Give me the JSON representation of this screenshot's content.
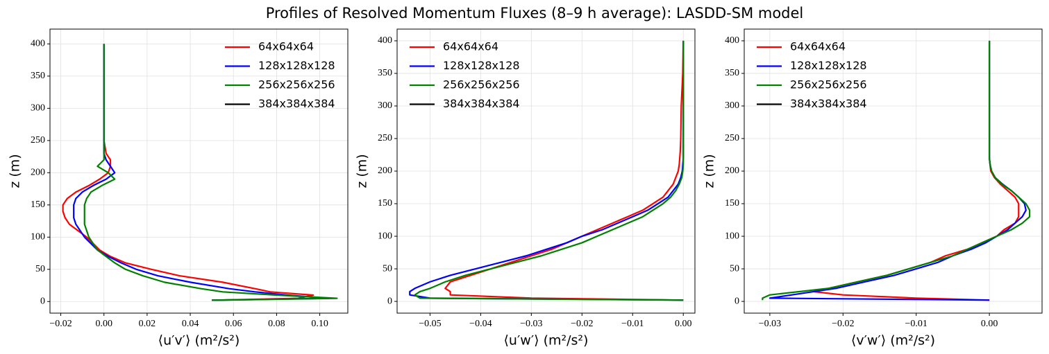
{
  "title": "Profiles of Resolved Momentum Fluxes (8–9 h average): LASDD-SM model",
  "chart_data": [
    {
      "type": "line",
      "xlabel": "⟨u′v′⟩ (m²/s²)",
      "ylabel": "z (m)",
      "grid": true,
      "legend": "upper right",
      "xlim": [
        -0.025,
        0.113
      ],
      "xticks": [
        {
          "value": -0.02,
          "label": "−0.02"
        },
        {
          "value": 0,
          "label": "0.00"
        },
        0.02,
        0.04,
        0.06,
        0.08,
        {
          "value": 0.1,
          "label": "0.10"
        }
      ],
      "ylim": [
        -18,
        423
      ],
      "yticks": [
        0,
        50,
        100,
        150,
        200,
        250,
        300,
        350,
        400
      ],
      "y": [
        2,
        5,
        10,
        15,
        20,
        30,
        40,
        50,
        60,
        70,
        80,
        90,
        100,
        110,
        120,
        130,
        140,
        150,
        160,
        170,
        180,
        190,
        200,
        210,
        220,
        230,
        250,
        300,
        350,
        400
      ],
      "series": [
        {
          "name": "64x64x64",
          "color": "#ff0000",
          "values": [
            0.05,
            0.09,
            0.097,
            0.077,
            0.07,
            0.055,
            0.035,
            0.022,
            0.01,
            0.003,
            -0.002,
            -0.005,
            -0.008,
            -0.012,
            -0.016,
            -0.018,
            -0.019,
            -0.019,
            -0.017,
            -0.013,
            -0.007,
            -0.002,
            0.002,
            0.003,
            0.003,
            0.001,
            0,
            0,
            0,
            0
          ]
        },
        {
          "name": "128x128x128",
          "color": "#0000ff",
          "values": [
            0.05,
            0.104,
            0.085,
            0.07,
            0.058,
            0.04,
            0.025,
            0.015,
            0.008,
            0.002,
            -0.003,
            -0.006,
            -0.009,
            -0.011,
            -0.013,
            -0.014,
            -0.014,
            -0.014,
            -0.013,
            -0.01,
            -0.005,
            0.001,
            0.005,
            0.003,
            0.001,
            0,
            0,
            0,
            0,
            0
          ]
        },
        {
          "name": "256x256x256",
          "color": "#008000",
          "values": [
            0.05,
            0.108,
            0.08,
            0.055,
            0.045,
            0.028,
            0.018,
            0.01,
            0.005,
            0.001,
            -0.003,
            -0.005,
            -0.007,
            -0.008,
            -0.009,
            -0.009,
            -0.009,
            -0.009,
            -0.008,
            -0.006,
            -0.001,
            0.005,
            0.002,
            -0.003,
            0,
            0,
            0,
            0,
            0,
            0
          ]
        },
        {
          "name": "384x384x384",
          "color": "#000000",
          "values": [
            null,
            null,
            null,
            null,
            null,
            null,
            null,
            null,
            null,
            null,
            null,
            null,
            null,
            null,
            null,
            null,
            null,
            null,
            null,
            null,
            null,
            null,
            null,
            null,
            null,
            null,
            null,
            null,
            null,
            null
          ]
        }
      ]
    },
    {
      "type": "line",
      "xlabel": "⟨u′w′⟩ (m²/s²)",
      "ylabel": "z (m)",
      "grid": true,
      "legend": "upper left",
      "xlim": [
        -0.0565,
        0.0023
      ],
      "xticks": [
        {
          "value": -0.05,
          "label": "−0.05"
        },
        {
          "value": -0.04,
          "label": "−0.04"
        },
        {
          "value": -0.03,
          "label": "−0.03"
        },
        {
          "value": -0.02,
          "label": "−0.02"
        },
        {
          "value": -0.01,
          "label": "−0.01"
        },
        {
          "value": 0,
          "label": "0.00"
        }
      ],
      "ylim": [
        -18,
        418
      ],
      "yticks": [
        0,
        50,
        100,
        150,
        200,
        250,
        300,
        350,
        400
      ],
      "y": [
        2,
        5,
        10,
        15,
        20,
        30,
        40,
        50,
        60,
        70,
        80,
        90,
        100,
        110,
        120,
        130,
        140,
        150,
        160,
        170,
        180,
        190,
        200,
        210,
        220,
        230,
        250,
        300,
        350,
        400
      ],
      "series": [
        {
          "name": "64x64x64",
          "color": "#ff0000",
          "values": [
            0,
            -0.03,
            -0.046,
            -0.046,
            -0.047,
            -0.046,
            -0.042,
            -0.038,
            -0.034,
            -0.03,
            -0.026,
            -0.023,
            -0.02,
            -0.017,
            -0.014,
            -0.011,
            -0.008,
            -0.006,
            -0.004,
            -0.003,
            -0.002,
            -0.0015,
            -0.001,
            -0.0008,
            -0.0007,
            -0.0006,
            -0.0005,
            -0.0004,
            -0.0001,
            0
          ]
        },
        {
          "name": "128x128x128",
          "color": "#0000ff",
          "values": [
            0,
            -0.05,
            -0.054,
            -0.054,
            -0.053,
            -0.05,
            -0.046,
            -0.041,
            -0.036,
            -0.031,
            -0.027,
            -0.023,
            -0.02,
            -0.016,
            -0.013,
            -0.01,
            -0.007,
            -0.005,
            -0.003,
            -0.002,
            -0.001,
            -0.0005,
            -0.0002,
            -0.0001,
            0,
            0,
            0,
            0,
            0,
            0
          ]
        },
        {
          "name": "256x256x256",
          "color": "#008000",
          "values": [
            0,
            -0.052,
            -0.053,
            -0.052,
            -0.05,
            -0.047,
            -0.043,
            -0.038,
            -0.033,
            -0.028,
            -0.024,
            -0.02,
            -0.017,
            -0.014,
            -0.011,
            -0.008,
            -0.006,
            -0.004,
            -0.0025,
            -0.0015,
            -0.0008,
            -0.0003,
            -0.0001,
            0,
            0,
            0,
            0,
            0,
            0,
            0
          ]
        },
        {
          "name": "384x384x384",
          "color": "#000000",
          "values": [
            null,
            null,
            null,
            null,
            null,
            null,
            null,
            null,
            null,
            null,
            null,
            null,
            null,
            null,
            null,
            null,
            null,
            null,
            null,
            null,
            null,
            null,
            null,
            null,
            null,
            null,
            null,
            null,
            null,
            null
          ]
        }
      ]
    },
    {
      "type": "line",
      "xlabel": "⟨v′w′⟩ (m²/s²)",
      "ylabel": "z (m)",
      "grid": true,
      "legend": "upper left",
      "xlim": [
        -0.0335,
        0.0072
      ],
      "xticks": [
        {
          "value": -0.03,
          "label": "−0.03"
        },
        {
          "value": -0.02,
          "label": "−0.02"
        },
        {
          "value": -0.01,
          "label": "−0.01"
        },
        {
          "value": 0,
          "label": "0.00"
        }
      ],
      "ylim": [
        -18,
        418
      ],
      "yticks": [
        0,
        50,
        100,
        150,
        200,
        250,
        300,
        350,
        400
      ],
      "y": [
        2,
        5,
        10,
        15,
        20,
        30,
        40,
        50,
        60,
        70,
        80,
        90,
        100,
        110,
        120,
        130,
        140,
        150,
        160,
        170,
        180,
        190,
        200,
        210,
        220,
        230,
        250,
        300,
        350,
        400
      ],
      "series": [
        {
          "name": "64x64x64",
          "color": "#ff0000",
          "values": [
            0,
            -0.01,
            -0.02,
            -0.024,
            -0.022,
            -0.018,
            -0.014,
            -0.011,
            -0.008,
            -0.006,
            -0.003,
            -0.001,
            0.001,
            0.002,
            0.0035,
            0.004,
            0.004,
            0.004,
            0.0035,
            0.0025,
            0.0015,
            0.0007,
            0.0002,
            0.0001,
            0,
            0,
            0,
            0,
            0,
            0
          ]
        },
        {
          "name": "128x128x128",
          "color": "#0000ff",
          "values": [
            0,
            -0.03,
            -0.027,
            -0.024,
            -0.021,
            -0.017,
            -0.013,
            -0.01,
            -0.007,
            -0.005,
            -0.0025,
            -0.0005,
            0.001,
            0.0025,
            0.0035,
            0.0045,
            0.005,
            0.0048,
            0.004,
            0.003,
            0.0018,
            0.0008,
            0.0003,
            0.0001,
            0,
            0,
            0,
            0,
            0,
            0
          ]
        },
        {
          "name": "256x256x256",
          "color": "#008000",
          "values": [
            -0.031,
            -0.031,
            -0.03,
            -0.026,
            -0.022,
            -0.018,
            -0.014,
            -0.011,
            -0.008,
            -0.005,
            -0.003,
            -0.001,
            0.001,
            0.003,
            0.0045,
            0.0055,
            0.0055,
            0.005,
            0.004,
            0.003,
            0.0017,
            0.0008,
            0.0003,
            0.0001,
            0,
            0,
            0,
            0,
            0,
            0
          ]
        },
        {
          "name": "384x384x384",
          "color": "#000000",
          "values": [
            null,
            null,
            null,
            null,
            null,
            null,
            null,
            null,
            null,
            null,
            null,
            null,
            null,
            null,
            null,
            null,
            null,
            null,
            null,
            null,
            null,
            null,
            null,
            null,
            null,
            null,
            null,
            null,
            null,
            null
          ]
        }
      ]
    }
  ]
}
